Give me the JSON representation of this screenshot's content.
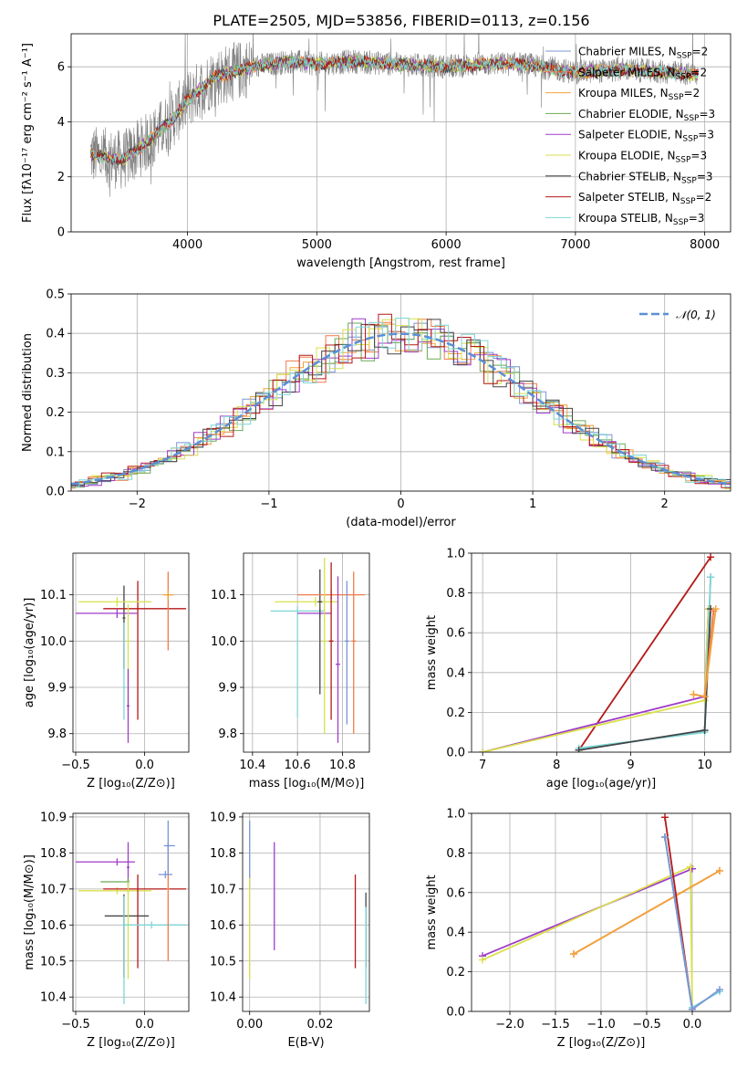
{
  "figure": {
    "title": "PLATE=2505, MJD=53856, FIBERID=0113, z=0.156"
  },
  "model_colors": {
    "Chabrier MILES": "#7b95d6",
    "Salpeter MILES": "#f07a4a",
    "Kroupa MILES": "#f2a23a",
    "Chabrier ELODIE": "#6aaa55",
    "Salpeter ELODIE": "#a03cc8",
    "Kroupa ELODIE": "#d8e04a",
    "Chabrier STELIB": "#444444",
    "Salpeter STELIB": "#b51818",
    "Kroupa STELIB": "#7fd6d6",
    "data": "#808080",
    "gaussian": "#5b8fd6"
  },
  "chart_data": [
    {
      "type": "line",
      "name": "spectrum",
      "xlabel": "wavelength [Angstrom, rest frame]",
      "ylabel": "Flux [fλ10⁻¹⁷ erg cm⁻² s⁻¹ A⁻¹]",
      "xlim": [
        3100,
        8200
      ],
      "ylim": [
        0,
        7.2
      ],
      "xticks": [
        "4000",
        "5000",
        "6000",
        "7000",
        "8000"
      ],
      "yticks": [
        "0",
        "2",
        "4",
        "6"
      ],
      "x_range": [
        3250,
        7950
      ],
      "continuum_x": [
        3250,
        3500,
        3700,
        3900,
        4000,
        4200,
        4500,
        4800,
        5000,
        5300,
        5600,
        6000,
        6300,
        6600,
        7000,
        7400,
        7700,
        7950
      ],
      "continuum_y": [
        2.8,
        2.6,
        3.3,
        4.2,
        4.8,
        5.6,
        6.0,
        6.2,
        6.1,
        6.2,
        6.1,
        6.0,
        6.1,
        6.1,
        5.8,
        5.9,
        5.8,
        5.7
      ],
      "legend": [
        {
          "label": "Chabrier MILES, N",
          "sub": "SSP",
          "tail": "=2",
          "color_key": "Chabrier MILES"
        },
        {
          "label": "Salpeter MILES, N",
          "sub": "SSP",
          "tail": "=2",
          "color_key": "Salpeter MILES"
        },
        {
          "label": "Kroupa MILES, N",
          "sub": "SSP",
          "tail": "=2",
          "color_key": "Kroupa MILES"
        },
        {
          "label": "Chabrier ELODIE, N",
          "sub": "SSP",
          "tail": "=3",
          "color_key": "Chabrier ELODIE"
        },
        {
          "label": "Salpeter ELODIE, N",
          "sub": "SSP",
          "tail": "=3",
          "color_key": "Salpeter ELODIE"
        },
        {
          "label": "Kroupa ELODIE, N",
          "sub": "SSP",
          "tail": "=3",
          "color_key": "Kroupa ELODIE"
        },
        {
          "label": "Chabrier STELIB, N",
          "sub": "SSP",
          "tail": "=3",
          "color_key": "Chabrier STELIB"
        },
        {
          "label": "Salpeter STELIB, N",
          "sub": "SSP",
          "tail": "=2",
          "color_key": "Salpeter STELIB"
        },
        {
          "label": "Kroupa STELIB, N",
          "sub": "SSP",
          "tail": "=3",
          "color_key": "Kroupa STELIB"
        }
      ]
    },
    {
      "type": "area",
      "name": "residuals",
      "xlabel": "(data-model)/error",
      "ylabel": "Normed distribution",
      "xlim": [
        -2.5,
        2.5
      ],
      "ylim": [
        0,
        0.5
      ],
      "xticks": [
        "−2",
        "−1",
        "0",
        "1",
        "2"
      ],
      "xtick_values": [
        -2,
        -1,
        0,
        1,
        2
      ],
      "yticks": [
        "0.0",
        "0.1",
        "0.2",
        "0.3",
        "0.4",
        "0.5"
      ],
      "ytick_values": [
        0,
        0.1,
        0.2,
        0.3,
        0.4,
        0.5
      ],
      "legend_label": "𝒩(0, 1)",
      "gaussian": {
        "mean": 0,
        "sigma": 1
      }
    },
    {
      "type": "scatter",
      "name": "age_vs_Z",
      "xlabel": "Z [log₁₀(Z/Z⊙)]",
      "ylabel": "age  [log₁₀(age/yr)]",
      "xlim": [
        -0.52,
        0.32
      ],
      "ylim": [
        9.76,
        10.19
      ],
      "xticks": [
        "−0.5",
        "0.0"
      ],
      "xtick_values": [
        -0.5,
        0.0
      ],
      "yticks": [
        "9.8",
        "9.9",
        "10.0",
        "10.1"
      ],
      "ytick_values": [
        9.8,
        9.9,
        10.0,
        10.1
      ],
      "points": [
        {
          "model": "Chabrier STELIB",
          "x": -0.15,
          "y": 10.05,
          "xerr": [
            0.01,
            0.01
          ],
          "yerr": [
            0.11,
            0.07
          ]
        },
        {
          "model": "Salpeter STELIB",
          "x": -0.05,
          "y": 10.07,
          "xerr": [
            0.25,
            0.35
          ],
          "yerr": [
            0.24,
            0.06
          ]
        },
        {
          "model": "Salpeter ELODIE",
          "x": -0.2,
          "y": 10.06,
          "xerr": [
            0.3,
            0.15
          ],
          "yerr": [
            0.01,
            0.01
          ]
        },
        {
          "model": "Kroupa ELODIE",
          "x": -0.2,
          "y": 10.085,
          "xerr": [
            0.28,
            0.25
          ],
          "yerr": [
            0.01,
            0.01
          ]
        },
        {
          "model": "Kroupa ELODIE",
          "x": -0.12,
          "y": 10.0,
          "xerr": [
            0.01,
            0.01
          ],
          "yerr": [
            0.15,
            0.08
          ]
        },
        {
          "model": "Salpeter ELODIE",
          "x": -0.12,
          "y": 9.86,
          "xerr": [
            0.01,
            0.01
          ],
          "yerr": [
            0.08,
            0.08
          ]
        },
        {
          "model": "Kroupa STELIB",
          "x": -0.15,
          "y": 9.9,
          "xerr": [
            0.01,
            0.01
          ],
          "yerr": [
            0.07,
            0.14
          ]
        },
        {
          "model": "Salpeter MILES",
          "x": 0.17,
          "y": 10.1,
          "xerr": [
            0.01,
            0.01
          ],
          "yerr": [
            0.12,
            0.05
          ]
        },
        {
          "model": "Kroupa MILES",
          "x": 0.17,
          "y": 10.1,
          "xerr": [
            0.04,
            0.04
          ],
          "yerr": [
            0.01,
            0.01
          ]
        }
      ]
    },
    {
      "type": "scatter",
      "name": "age_vs_mass",
      "xlabel": "mass [log₁₀(M/M⊙)]",
      "ylabel": "",
      "xlim": [
        10.36,
        10.92
      ],
      "ylim": [
        9.76,
        10.19
      ],
      "xticks": [
        "10.4",
        "10.6",
        "10.8"
      ],
      "xtick_values": [
        10.4,
        10.6,
        10.8
      ],
      "yticks": [
        "9.8",
        "9.9",
        "10.0",
        "10.1"
      ],
      "ytick_values": [
        9.8,
        9.9,
        10.0,
        10.1
      ],
      "points": [
        {
          "model": "Kroupa STELIB",
          "x": 10.6,
          "y": 10.065,
          "xerr": [
            0.12,
            0.12
          ],
          "yerr": [
            0.23,
            0.01
          ]
        },
        {
          "model": "Salpeter ELODIE",
          "x": 10.7,
          "y": 10.06,
          "xerr": [
            0.1,
            0.05
          ],
          "yerr": [
            0.01,
            0.01
          ]
        },
        {
          "model": "Kroupa ELODIE",
          "x": 10.68,
          "y": 10.085,
          "xerr": [
            0.18,
            0.1
          ],
          "yerr": [
            0.01,
            0.01
          ]
        },
        {
          "model": "Chabrier STELIB",
          "x": 10.7,
          "y": 10.085,
          "xerr": [
            0.01,
            0.01
          ],
          "yerr": [
            0.2,
            0.07
          ]
        },
        {
          "model": "Salpeter MILES",
          "x": 10.75,
          "y": 10.1,
          "xerr": [
            0.15,
            0.15
          ],
          "yerr": [
            0.01,
            0.01
          ]
        },
        {
          "model": "Salpeter ELODIE",
          "x": 10.78,
          "y": 9.95,
          "xerr": [
            0.01,
            0.01
          ],
          "yerr": [
            0.17,
            0.19
          ]
        },
        {
          "model": "Kroupa ELODIE",
          "x": 10.72,
          "y": 10.0,
          "xerr": [
            0.01,
            0.01
          ],
          "yerr": [
            0.2,
            0.18
          ]
        },
        {
          "model": "Salpeter STELIB",
          "x": 10.75,
          "y": 10.0,
          "xerr": [
            0.01,
            0.01
          ],
          "yerr": [
            0.17,
            0.17
          ]
        },
        {
          "model": "Chabrier MILES",
          "x": 10.82,
          "y": 10.0,
          "xerr": [
            0.01,
            0.01
          ],
          "yerr": [
            0.18,
            0.13
          ]
        },
        {
          "model": "Salpeter MILES",
          "x": 10.85,
          "y": 10.0,
          "xerr": [
            0.01,
            0.01
          ],
          "yerr": [
            0.2,
            0.15
          ]
        }
      ]
    },
    {
      "type": "line",
      "name": "mass_weight_vs_age",
      "xlabel": "age  [log₁₀(age/yr)]",
      "ylabel": "mass weight",
      "xlim": [
        6.85,
        10.35
      ],
      "ylim": [
        0,
        1
      ],
      "xticks": [
        "7",
        "8",
        "9",
        "10"
      ],
      "xtick_values": [
        7,
        8,
        9,
        10
      ],
      "yticks": [
        "0.0",
        "0.2",
        "0.4",
        "0.6",
        "0.8",
        "1.0"
      ],
      "ytick_values": [
        0,
        0.2,
        0.4,
        0.6,
        0.8,
        1.0
      ],
      "series": [
        {
          "model": "Salpeter STELIB",
          "x": [
            8.3,
            10.08
          ],
          "y": [
            0.01,
            0.98
          ]
        },
        {
          "model": "Salpeter ELODIE",
          "x": [
            7.0,
            10.0,
            10.05
          ],
          "y": [
            0.0,
            0.28,
            0.72
          ]
        },
        {
          "model": "Kroupa ELODIE",
          "x": [
            7.0,
            10.0,
            10.05
          ],
          "y": [
            0.0,
            0.26,
            0.72
          ]
        },
        {
          "model": "Chabrier MILES",
          "x": [
            8.3,
            10.0,
            10.08
          ],
          "y": [
            0.01,
            0.11,
            0.88
          ]
        },
        {
          "model": "Kroupa STELIB",
          "x": [
            8.3,
            10.0,
            10.08
          ],
          "y": [
            0.02,
            0.1,
            0.88
          ]
        },
        {
          "model": "Chabrier STELIB",
          "x": [
            8.3,
            10.0,
            10.08
          ],
          "y": [
            0.01,
            0.11,
            0.72
          ]
        },
        {
          "model": "Salpeter MILES",
          "x": [
            9.85,
            10.0,
            10.12
          ],
          "y": [
            0.29,
            0.28,
            0.71
          ]
        },
        {
          "model": "Kroupa MILES",
          "x": [
            9.85,
            10.0,
            10.15
          ],
          "y": [
            0.29,
            0.28,
            0.72
          ]
        }
      ]
    },
    {
      "type": "scatter",
      "name": "mass_vs_Z",
      "xlabel": "Z [log₁₀(Z/Z⊙)]",
      "ylabel": "mass [log₁₀(M/M⊙)]",
      "xlim": [
        -0.52,
        0.32
      ],
      "ylim": [
        10.36,
        10.91
      ],
      "xticks": [
        "−0.5",
        "0.0"
      ],
      "xtick_values": [
        -0.5,
        0.0
      ],
      "yticks": [
        "10.4",
        "10.5",
        "10.6",
        "10.7",
        "10.8",
        "10.9"
      ],
      "ytick_values": [
        10.4,
        10.5,
        10.6,
        10.7,
        10.8,
        10.9
      ],
      "points": [
        {
          "model": "Salpeter ELODIE",
          "x": -0.2,
          "y": 10.775,
          "xerr": [
            0.3,
            0.13
          ],
          "yerr": [
            0.01,
            0.01
          ]
        },
        {
          "model": "Salpeter ELODIE",
          "x": -0.12,
          "y": 10.76,
          "xerr": [
            0.01,
            0.01
          ],
          "yerr": [
            0.07,
            0.07
          ]
        },
        {
          "model": "Kroupa ELODIE",
          "x": -0.2,
          "y": 10.695,
          "xerr": [
            0.28,
            0.25
          ],
          "yerr": [
            0.01,
            0.01
          ]
        },
        {
          "model": "Salpeter STELIB",
          "x": -0.05,
          "y": 10.7,
          "xerr": [
            0.25,
            0.35
          ],
          "yerr": [
            0.22,
            0.04
          ]
        },
        {
          "model": "Chabrier ELODIE",
          "x": -0.12,
          "y": 10.72,
          "xerr": [
            0.2,
            0.01
          ],
          "yerr": [
            0.01,
            0.01
          ]
        },
        {
          "model": "Chabrier STELIB",
          "x": -0.15,
          "y": 10.625,
          "xerr": [
            0.14,
            0.18
          ],
          "yerr": [
            0.17,
            0.06
          ]
        },
        {
          "model": "Kroupa ELODIE",
          "x": -0.12,
          "y": 10.6,
          "xerr": [
            0.01,
            0.01
          ],
          "yerr": [
            0.15,
            0.12
          ]
        },
        {
          "model": "Kroupa STELIB",
          "x": -0.15,
          "y": 10.6,
          "xerr": [
            0.01,
            0.01
          ],
          "yerr": [
            0.22,
            0.08
          ]
        },
        {
          "model": "Kroupa STELIB",
          "x": 0.05,
          "y": 10.6,
          "xerr": [
            0.2,
            0.25
          ],
          "yerr": [
            0.01,
            0.01
          ]
        },
        {
          "model": "Salpeter MILES",
          "x": 0.17,
          "y": 10.7,
          "xerr": [
            0.01,
            0.01
          ],
          "yerr": [
            0.2,
            0.12
          ]
        },
        {
          "model": "Chabrier MILES",
          "x": 0.15,
          "y": 10.74,
          "xerr": [
            0.05,
            0.05
          ],
          "yerr": [
            0.01,
            0.01
          ]
        },
        {
          "model": "Chabrier MILES",
          "x": 0.17,
          "y": 10.82,
          "xerr": [
            0.03,
            0.05
          ],
          "yerr": [
            0.01,
            0.01
          ]
        },
        {
          "model": "Chabrier MILES",
          "x": 0.17,
          "y": 10.82,
          "xerr": [
            0.01,
            0.01
          ],
          "yerr": [
            0.08,
            0.07
          ]
        }
      ]
    },
    {
      "type": "scatter",
      "name": "mass_vs_EBV",
      "xlabel": "E(B-V)",
      "ylabel": "",
      "xlim": [
        -0.002,
        0.034
      ],
      "ylim": [
        10.36,
        10.91
      ],
      "xticks": [
        "0.00",
        "0.02"
      ],
      "xtick_values": [
        0.0,
        0.02
      ],
      "yticks": [
        "10.4",
        "10.5",
        "10.6",
        "10.7",
        "10.8",
        "10.9"
      ],
      "ytick_values": [
        10.4,
        10.5,
        10.6,
        10.7,
        10.8,
        10.9
      ],
      "points": [
        {
          "model": "Chabrier MILES",
          "x": 0.0,
          "y": 10.8,
          "xerr": [
            0,
            0
          ],
          "yerr": [
            0.1,
            0.09
          ]
        },
        {
          "model": "Kroupa ELODIE",
          "x": 0.0,
          "y": 10.6,
          "xerr": [
            0,
            0
          ],
          "yerr": [
            0.15,
            0.13
          ]
        },
        {
          "model": "Salpeter ELODIE",
          "x": 0.007,
          "y": 10.68,
          "xerr": [
            0,
            0
          ],
          "yerr": [
            0.15,
            0.15
          ]
        },
        {
          "model": "Salpeter STELIB",
          "x": 0.03,
          "y": 10.61,
          "xerr": [
            0,
            0
          ],
          "yerr": [
            0.13,
            0.13
          ]
        },
        {
          "model": "Chabrier STELIB",
          "x": 0.033,
          "y": 10.6,
          "xerr": [
            0,
            0
          ],
          "yerr": [
            0.12,
            0.09
          ]
        },
        {
          "model": "Kroupa STELIB",
          "x": 0.033,
          "y": 10.55,
          "xerr": [
            0,
            0
          ],
          "yerr": [
            0.17,
            0.1
          ]
        }
      ]
    },
    {
      "type": "line",
      "name": "mass_weight_vs_Z",
      "xlabel": "Z [log₁₀(Z/Z⊙)]",
      "ylabel": "mass weight",
      "xlim": [
        -2.42,
        0.42
      ],
      "ylim": [
        0,
        1
      ],
      "xticks": [
        "−2.0",
        "−1.5",
        "−1.0",
        "−0.5",
        "0.0"
      ],
      "xtick_values": [
        -2.0,
        -1.5,
        -1.0,
        -0.5,
        0.0
      ],
      "yticks": [
        "0.0",
        "0.2",
        "0.4",
        "0.6",
        "0.8",
        "1.0"
      ],
      "ytick_values": [
        0,
        0.2,
        0.4,
        0.6,
        0.8,
        1.0
      ],
      "series": [
        {
          "model": "Salpeter ELODIE",
          "x": [
            -2.3,
            0.0
          ],
          "y": [
            0.28,
            0.72
          ]
        },
        {
          "model": "Kroupa ELODIE",
          "x": [
            -2.3,
            -0.02,
            0.0
          ],
          "y": [
            0.26,
            0.73,
            0.02
          ]
        },
        {
          "model": "Salpeter MILES",
          "x": [
            -1.3,
            0.3
          ],
          "y": [
            0.29,
            0.71
          ]
        },
        {
          "model": "Kroupa MILES",
          "x": [
            -1.3,
            0.3
          ],
          "y": [
            0.29,
            0.71
          ]
        },
        {
          "model": "Salpeter STELIB",
          "x": [
            -0.3,
            0.0
          ],
          "y": [
            0.98,
            0.01
          ]
        },
        {
          "model": "Chabrier STELIB",
          "x": [
            -0.3,
            0.0
          ],
          "y": [
            0.88,
            0.01
          ]
        },
        {
          "model": "Kroupa STELIB",
          "x": [
            -0.3,
            0.0,
            0.3
          ],
          "y": [
            0.88,
            0.02,
            0.1
          ]
        },
        {
          "model": "Chabrier MILES",
          "x": [
            -0.3,
            0.0,
            0.3
          ],
          "y": [
            0.88,
            0.01,
            0.11
          ]
        }
      ]
    }
  ]
}
